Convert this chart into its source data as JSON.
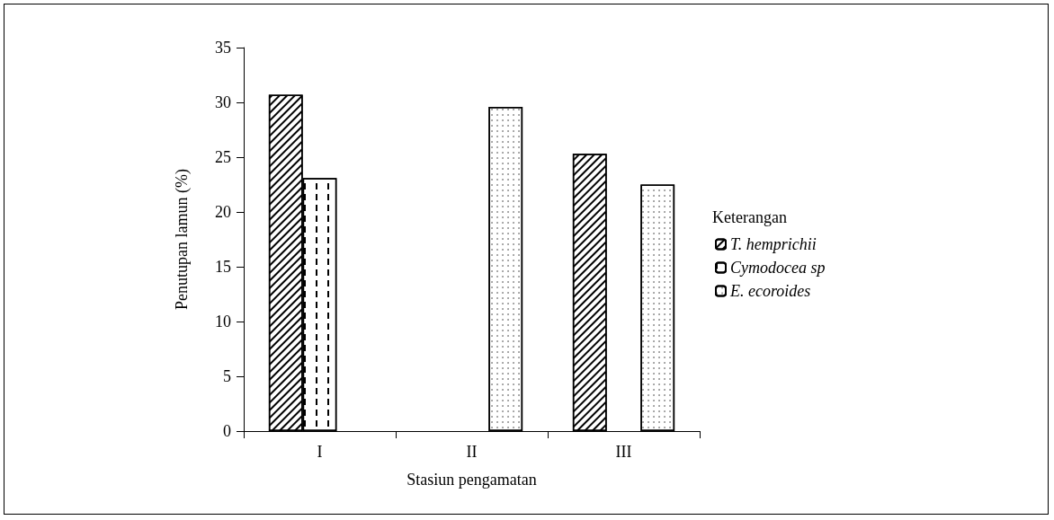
{
  "chart_data": {
    "type": "bar",
    "xlabel": "Stasiun pengamatan",
    "ylabel": "Penutupan lamun (%)",
    "legend_title": "Keterangan",
    "categories": [
      "I",
      "II",
      "III"
    ],
    "series": [
      {
        "name": "T. hemprichii",
        "color": "#ffffff",
        "values": [
          30.7,
          null,
          25.3
        ]
      },
      {
        "name": "Cymodocea sp",
        "color": "#ffffff",
        "values": [
          23.1,
          null,
          null
        ]
      },
      {
        "name": "E. ecoroides",
        "color": "#ffffff",
        "values": [
          null,
          29.6,
          22.5
        ]
      }
    ],
    "ylim": [
      0,
      35
    ],
    "yticks": [
      0,
      5,
      10,
      15,
      20,
      25,
      30,
      35
    ],
    "grid": false,
    "legend": "right"
  }
}
